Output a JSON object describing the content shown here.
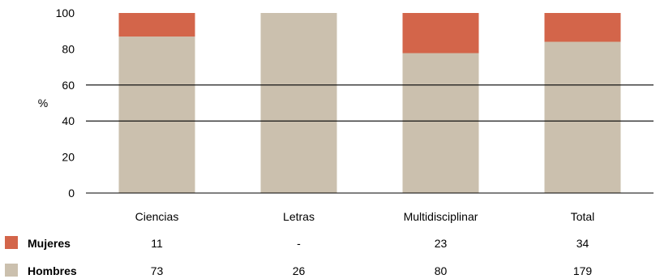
{
  "chart_data": {
    "type": "bar",
    "stacked": true,
    "ylabel": "%",
    "ylim": [
      0,
      100
    ],
    "yticks": [
      "0",
      "20",
      "40",
      "60",
      "80",
      "100"
    ],
    "gridlines_at": [
      60,
      40
    ],
    "categories": [
      "Ciencias",
      "Letras",
      "Multidisciplinar",
      "Total"
    ],
    "series": [
      {
        "name": "Hombres",
        "color": "#cbc0ae",
        "values": [
          86.9,
          100,
          77.7,
          84.0
        ]
      },
      {
        "name": "Mujeres",
        "color": "#d3654a",
        "values": [
          13.1,
          0,
          22.3,
          16.0
        ]
      }
    ],
    "table": {
      "rows": [
        {
          "label": "Mujeres",
          "color": "#d3654a",
          "cells": [
            "11",
            "-",
            "23",
            "34"
          ]
        },
        {
          "label": "Hombres",
          "color": "#cbc0ae",
          "cells": [
            "73",
            "26",
            "80",
            "179"
          ]
        }
      ]
    }
  }
}
